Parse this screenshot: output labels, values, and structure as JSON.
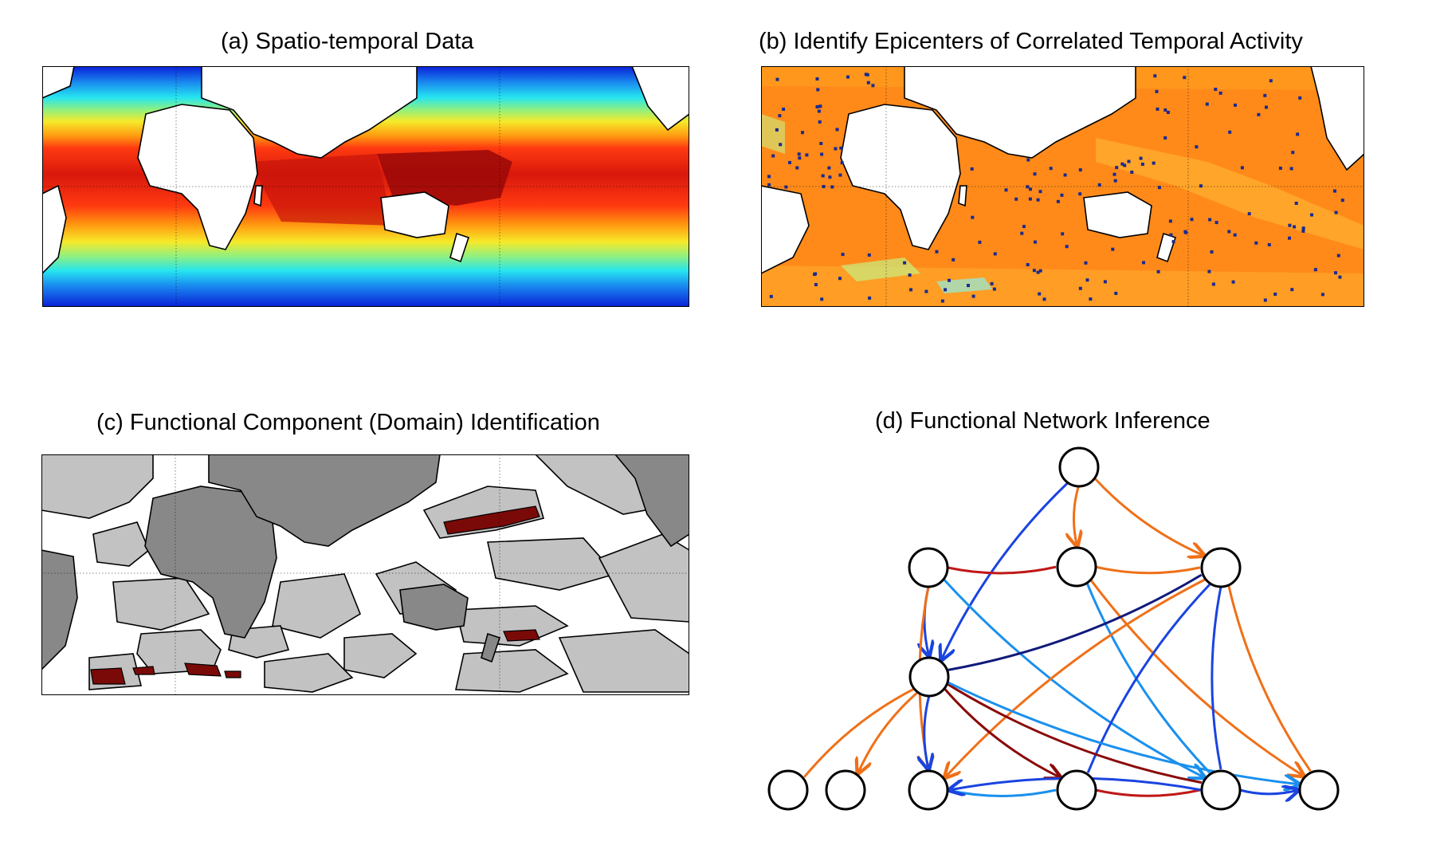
{
  "panels": {
    "a": {
      "title": "(a) Spatio-temporal Data"
    },
    "b": {
      "title": "(b) Identify Epicenters of Correlated Temporal Activity"
    },
    "c": {
      "title": "(c) Functional Component (Domain) Identification"
    },
    "d": {
      "title": "(d) Functional Network Inference"
    }
  },
  "colors": {
    "map_a_bands": [
      "#0a1fd8",
      "#1a8df0",
      "#26e5f0",
      "#8ef080",
      "#f6ea2a",
      "#ff9a10",
      "#ff3a10",
      "#d8180c",
      "#9a0808"
    ],
    "map_b_fill": "#ff8a1a",
    "map_b_epicenter": "#1a2a90",
    "map_c_land": "#888888",
    "map_c_domain": "#c2c2c2",
    "map_c_highlight": "#7a0a08",
    "edge_orange": "#f07018",
    "edge_red": "#c01818",
    "edge_darkred": "#8a0a0a",
    "edge_lightblue": "#1a90ee",
    "edge_blue": "#1a44e0",
    "edge_navy": "#101a7a"
  },
  "network": {
    "nodes": [
      "n-top",
      "n-left",
      "n-center",
      "n-right",
      "n-middle",
      "n-b1",
      "n-b2",
      "n-b3",
      "n-b4",
      "n-b5",
      "n-b6"
    ],
    "edges": [
      {
        "from": "n-top",
        "to": "n-center",
        "color": "edge_orange",
        "directed": true
      },
      {
        "from": "n-top",
        "to": "n-right",
        "color": "edge_orange",
        "directed": true
      },
      {
        "from": "n-top",
        "to": "n-middle",
        "color": "edge_blue",
        "directed": true
      },
      {
        "from": "n-left",
        "to": "n-center",
        "color": "edge_red",
        "directed": false
      },
      {
        "from": "n-center",
        "to": "n-right",
        "color": "edge_orange",
        "directed": false
      },
      {
        "from": "n-left",
        "to": "n-middle",
        "color": "edge_blue",
        "directed": true
      },
      {
        "from": "n-left",
        "to": "n-b3",
        "color": "edge_orange",
        "directed": true
      },
      {
        "from": "n-left",
        "to": "n-b5",
        "color": "edge_lightblue",
        "directed": true
      },
      {
        "from": "n-center",
        "to": "n-b5",
        "color": "edge_lightblue",
        "directed": false
      },
      {
        "from": "n-center",
        "to": "n-b6",
        "color": "edge_orange",
        "directed": true
      },
      {
        "from": "n-right",
        "to": "n-b6",
        "color": "edge_orange",
        "directed": false
      },
      {
        "from": "n-right",
        "to": "n-b5",
        "color": "edge_blue",
        "directed": false
      },
      {
        "from": "n-right",
        "to": "n-b4",
        "color": "edge_blue",
        "directed": false
      },
      {
        "from": "n-right",
        "to": "n-b3",
        "color": "edge_orange",
        "directed": true
      },
      {
        "from": "n-middle",
        "to": "n-right",
        "color": "edge_navy",
        "directed": false
      },
      {
        "from": "n-middle",
        "to": "n-b3",
        "color": "edge_blue",
        "directed": true
      },
      {
        "from": "n-middle",
        "to": "n-b2",
        "color": "edge_orange",
        "directed": true
      },
      {
        "from": "n-middle",
        "to": "n-b1",
        "color": "edge_orange",
        "directed": false
      },
      {
        "from": "n-middle",
        "to": "n-b4",
        "color": "edge_darkred",
        "directed": true
      },
      {
        "from": "n-middle",
        "to": "n-b5",
        "color": "edge_darkred",
        "directed": false
      },
      {
        "from": "n-middle",
        "to": "n-b6",
        "color": "edge_lightblue",
        "directed": true
      },
      {
        "from": "n-b3",
        "to": "n-b4",
        "color": "edge_lightblue",
        "directed": false
      },
      {
        "from": "n-b4",
        "to": "n-b5",
        "color": "edge_red",
        "directed": false
      },
      {
        "from": "n-b5",
        "to": "n-b6",
        "color": "edge_blue",
        "directed": true
      },
      {
        "from": "n-b5",
        "to": "n-b3",
        "color": "edge_blue",
        "directed": true
      }
    ]
  }
}
